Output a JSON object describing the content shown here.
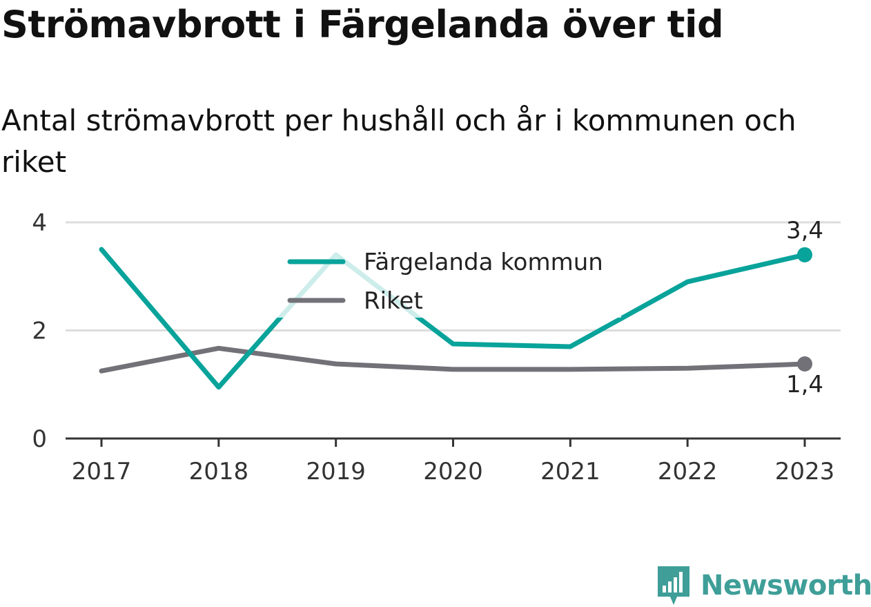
{
  "header": {
    "title": "Strömavbrott i Färgelanda över tid",
    "subtitle": "Antal strömavbrott per hushåll och år i kommunen och riket"
  },
  "chart_data": {
    "type": "line",
    "categories": [
      "2017",
      "2018",
      "2019",
      "2020",
      "2021",
      "2022",
      "2023"
    ],
    "series": [
      {
        "name": "Färgelanda kommun",
        "color": "#08a39a",
        "values": [
          3.5,
          0.95,
          3.4,
          1.75,
          1.7,
          2.9,
          3.4
        ],
        "end_label": "3,4"
      },
      {
        "name": "Riket",
        "color": "#737178",
        "values": [
          1.25,
          1.67,
          1.38,
          1.28,
          1.28,
          1.3,
          1.38
        ],
        "end_label": "1,4"
      }
    ],
    "y_ticks": [
      "0",
      "2",
      "4"
    ],
    "ylim": [
      0,
      4
    ],
    "grid": true,
    "legend": "top-center"
  },
  "brand": {
    "name": "Newsworthy",
    "color": "#3f9e98",
    "icon": "bar-chart-logo-icon"
  }
}
